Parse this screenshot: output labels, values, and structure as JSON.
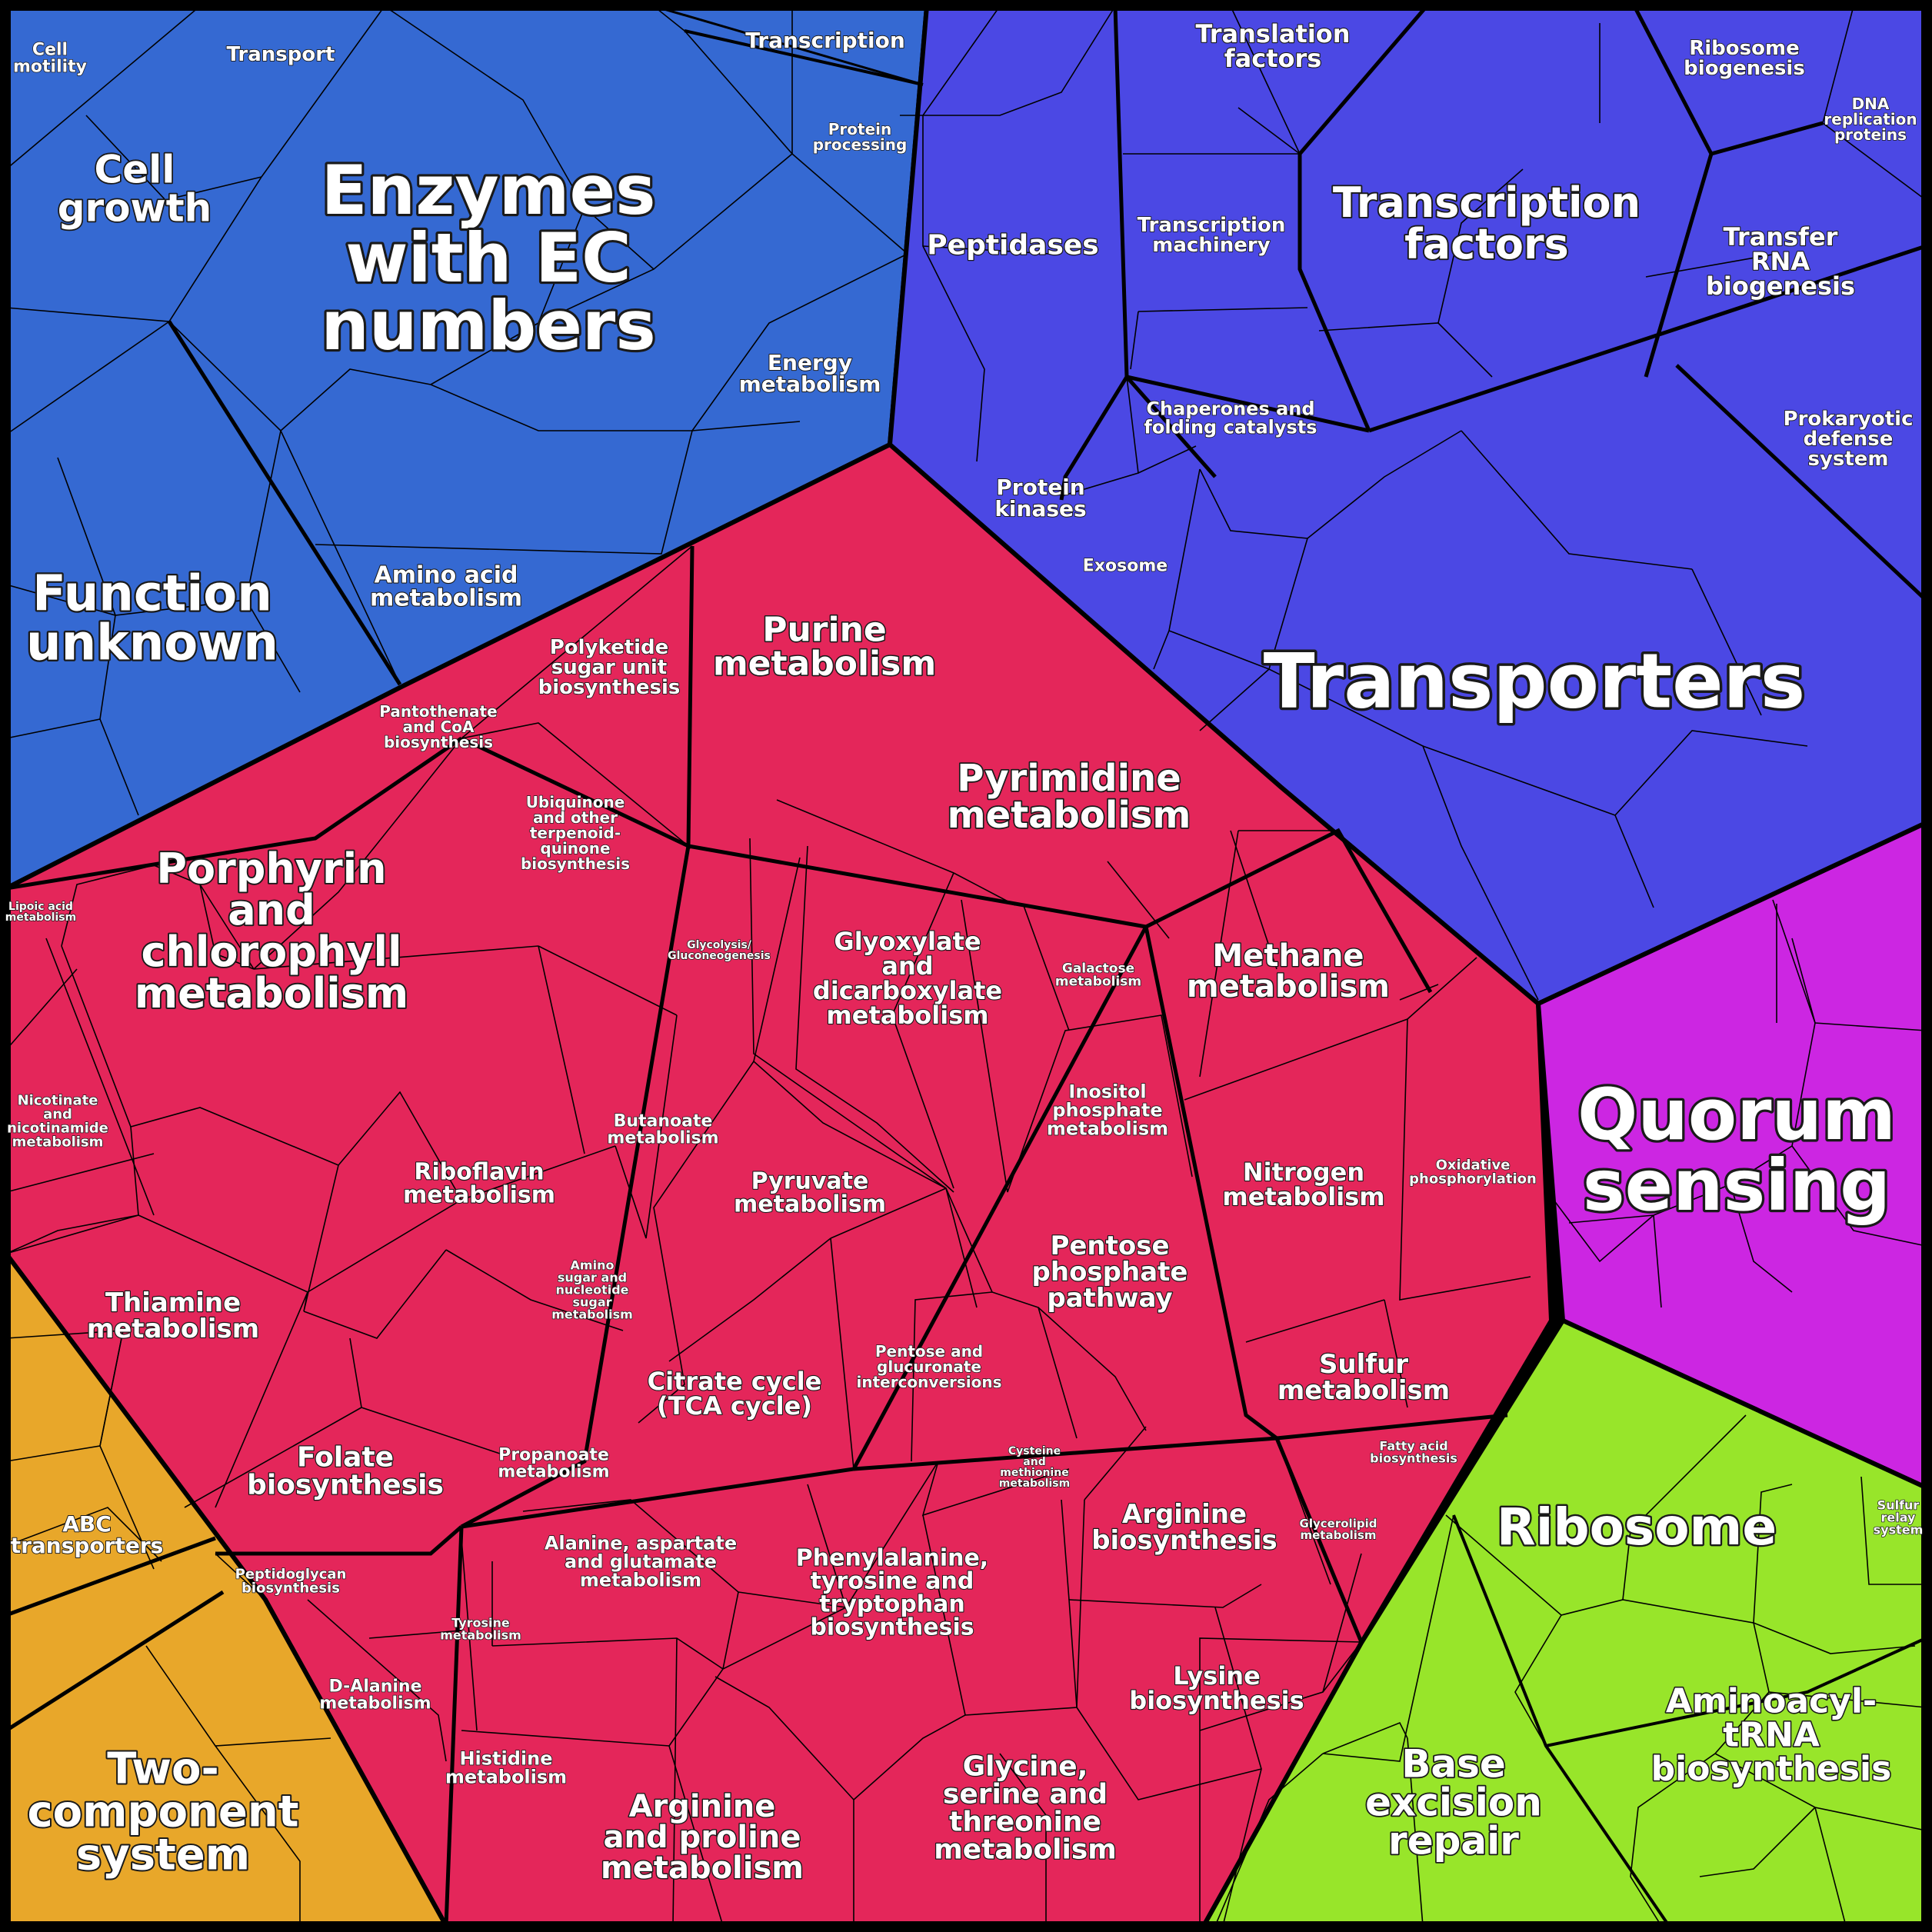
{
  "colors": {
    "blue": "#3569d2",
    "indigo": "#4b48e4",
    "red": "#e4265a",
    "magenta": "#cc26e2",
    "lime": "#98e52a",
    "orange": "#e8a72a"
  },
  "labels": {
    "cell_motility": [
      "Cell",
      "motility"
    ],
    "transport": [
      "Transport"
    ],
    "transcription": [
      "Transcription"
    ],
    "protein_processing": [
      "Protein",
      "processing"
    ],
    "cell_growth": [
      "Cell",
      "growth"
    ],
    "enzymes": [
      "Enzymes",
      "with EC",
      "numbers"
    ],
    "energy_metabolism": [
      "Energy",
      "metabolism"
    ],
    "function_unknown": [
      "Function",
      "unknown"
    ],
    "amino_acid_metabolism": [
      "Amino acid",
      "metabolism"
    ],
    "translation_factors": [
      "Translation",
      "factors"
    ],
    "ribosome_biogenesis": [
      "Ribosome",
      "biogenesis"
    ],
    "dna_replication": [
      "DNA",
      "replication",
      "proteins"
    ],
    "peptidases": [
      "Peptidases"
    ],
    "transcription_machinery": [
      "Transcription",
      "machinery"
    ],
    "transcription_factors": [
      "Transcription",
      "factors"
    ],
    "transfer_rna": [
      "Transfer",
      "RNA",
      "biogenesis"
    ],
    "chaperones": [
      "Chaperones and",
      "folding catalysts"
    ],
    "prokaryotic_defense": [
      "Prokaryotic",
      "defense",
      "system"
    ],
    "protein_kinases": [
      "Protein",
      "kinases"
    ],
    "exosome": [
      "Exosome"
    ],
    "transporters": [
      "Transporters"
    ],
    "quorum_sensing": [
      "Quorum",
      "sensing"
    ],
    "ribosome": [
      "Ribosome"
    ],
    "sulfur_relay": [
      "Sulfur",
      "relay",
      "system"
    ],
    "aminoacyl_trna": [
      "Aminoacyl-",
      "tRNA",
      "biosynthesis"
    ],
    "base_excision": [
      "Base",
      "excision",
      "repair"
    ],
    "abc_transporters": [
      "ABC",
      "transporters"
    ],
    "two_component": [
      "Two-",
      "component",
      "system"
    ],
    "polyketide": [
      "Polyketide",
      "sugar unit",
      "biosynthesis"
    ],
    "purine": [
      "Purine",
      "metabolism"
    ],
    "pantothenate": [
      "Pantothenate",
      "and CoA",
      "biosynthesis"
    ],
    "pyrimidine": [
      "Pyrimidine",
      "metabolism"
    ],
    "ubiquinone": [
      "Ubiquinone",
      "and other",
      "terpenoid-",
      "quinone",
      "biosynthesis"
    ],
    "lipoic_acid": [
      "Lipoic acid",
      "metabolism"
    ],
    "porphyrin": [
      "Porphyrin",
      "and",
      "chlorophyll",
      "metabolism"
    ],
    "glycolysis": [
      "Glycolysis/",
      "Gluconeogenesis"
    ],
    "glyoxylate": [
      "Glyoxylate",
      "and",
      "dicarboxylate",
      "metabolism"
    ],
    "galactose": [
      "Galactose",
      "metabolism"
    ],
    "methane": [
      "Methane",
      "metabolism"
    ],
    "nicotinate": [
      "Nicotinate",
      "and",
      "nicotinamide",
      "metabolism"
    ],
    "butanoate": [
      "Butanoate",
      "metabolism"
    ],
    "inositol": [
      "Inositol",
      "phosphate",
      "metabolism"
    ],
    "riboflavin": [
      "Riboflavin",
      "metabolism"
    ],
    "pyruvate": [
      "Pyruvate",
      "metabolism"
    ],
    "nitrogen": [
      "Nitrogen",
      "metabolism"
    ],
    "oxidative": [
      "Oxidative",
      "phosphorylation"
    ],
    "pentose_phosphate": [
      "Pentose",
      "phosphate",
      "pathway"
    ],
    "thiamine": [
      "Thiamine",
      "metabolism"
    ],
    "amino_sugar": [
      "Amino",
      "sugar and",
      "nucleotide",
      "sugar",
      "metabolism"
    ],
    "citrate": [
      "Citrate cycle",
      "(TCA cycle)"
    ],
    "pentose_glucuronate": [
      "Pentose and",
      "glucuronate",
      "interconversions"
    ],
    "sulfur_metabolism": [
      "Sulfur",
      "metabolism"
    ],
    "folate": [
      "Folate",
      "biosynthesis"
    ],
    "propanoate": [
      "Propanoate",
      "metabolism"
    ],
    "fatty_acid": [
      "Fatty acid",
      "biosynthesis"
    ],
    "cysteine": [
      "Cysteine",
      "and",
      "methionine",
      "metabolism"
    ],
    "alanine": [
      "Alanine, aspartate",
      "and glutamate",
      "metabolism"
    ],
    "arginine_bio": [
      "Arginine",
      "biosynthesis"
    ],
    "glycerolipid": [
      "Glycerolipid",
      "metabolism"
    ],
    "peptidoglycan": [
      "Peptidoglycan",
      "biosynthesis"
    ],
    "phenylalanine": [
      "Phenylalanine,",
      "tyrosine and",
      "tryptophan",
      "biosynthesis"
    ],
    "tyrosine": [
      "Tyrosine",
      "metabolism"
    ],
    "d_alanine": [
      "D-Alanine",
      "metabolism"
    ],
    "lysine": [
      "Lysine",
      "biosynthesis"
    ],
    "histidine": [
      "Histidine",
      "metabolism"
    ],
    "arginine_proline": [
      "Arginine",
      "and proline",
      "metabolism"
    ],
    "glycine": [
      "Glycine,",
      "serine and",
      "threonine",
      "metabolism"
    ]
  }
}
